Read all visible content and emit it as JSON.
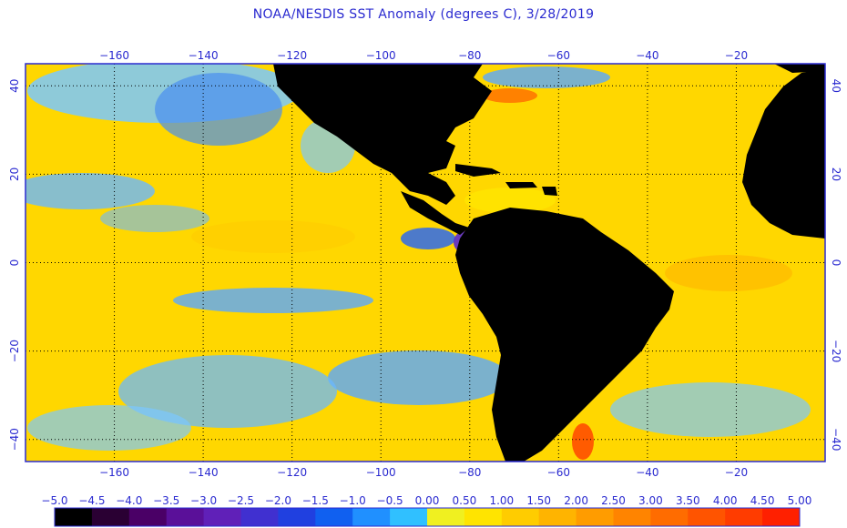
{
  "title": "NOAA/NESDIS SST Anomaly (degrees C), 3/28/2019",
  "map": {
    "lon_range": [
      -180,
      0
    ],
    "lat_range": [
      -45,
      45
    ],
    "lon_ticks": [
      -160,
      -140,
      -120,
      -100,
      -80,
      -60,
      -40,
      -20
    ],
    "lat_ticks": [
      40,
      20,
      0,
      -20,
      -40
    ],
    "grid": "dotted"
  },
  "colorbar": {
    "values": [
      "-5.0",
      "-4.5",
      "-4.0",
      "-3.5",
      "-3.0",
      "-2.5",
      "-2.0",
      "-1.5",
      "-1.0",
      "-0.5",
      "0.00",
      "0.50",
      "1.00",
      "1.50",
      "2.00",
      "2.50",
      "3.00",
      "3.50",
      "4.00",
      "4.50",
      "5.00"
    ],
    "colors": [
      "#000000",
      "#2a0033",
      "#4a0066",
      "#5a1099",
      "#6020b8",
      "#4030d0",
      "#2040e0",
      "#1060f0",
      "#2090ff",
      "#30c0ff",
      "#f0f020",
      "#ffe400",
      "#ffcc00",
      "#ffb400",
      "#ff9c00",
      "#ff8400",
      "#ff6c00",
      "#ff5400",
      "#ff3c00",
      "#ff2000"
    ]
  },
  "colors": {
    "land": "#000000",
    "ocean_base": "#ffd700",
    "warm": "#ffb400",
    "cool": "#5aa8ff",
    "cold": "#2a60e0",
    "text": "#2a2ad0"
  }
}
